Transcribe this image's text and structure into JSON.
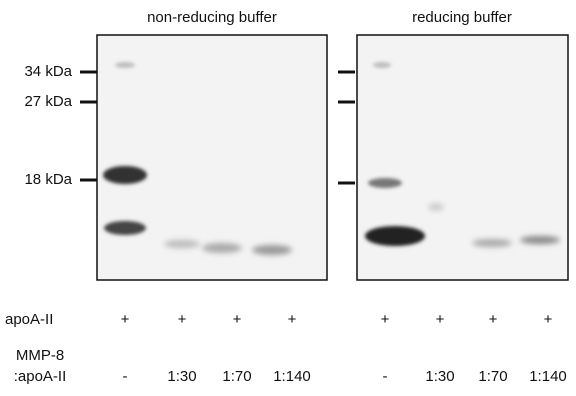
{
  "panels": [
    {
      "title": "non-reducing buffer"
    },
    {
      "title": "reducing buffer"
    }
  ],
  "markers": [
    "34 kDa",
    "27 kDa",
    "18 kDa"
  ],
  "rows": [
    {
      "label": "apoA-II",
      "lanes": [
        "+",
        "+",
        "+",
        "+",
        "+",
        "+",
        "+",
        "+"
      ]
    },
    {
      "label": [
        "MMP-8",
        ":apoA-II"
      ],
      "lanes": [
        "-",
        "1:30",
        "1:70",
        "1:140",
        "-",
        "1:30",
        "1:70",
        "1:140"
      ]
    }
  ]
}
